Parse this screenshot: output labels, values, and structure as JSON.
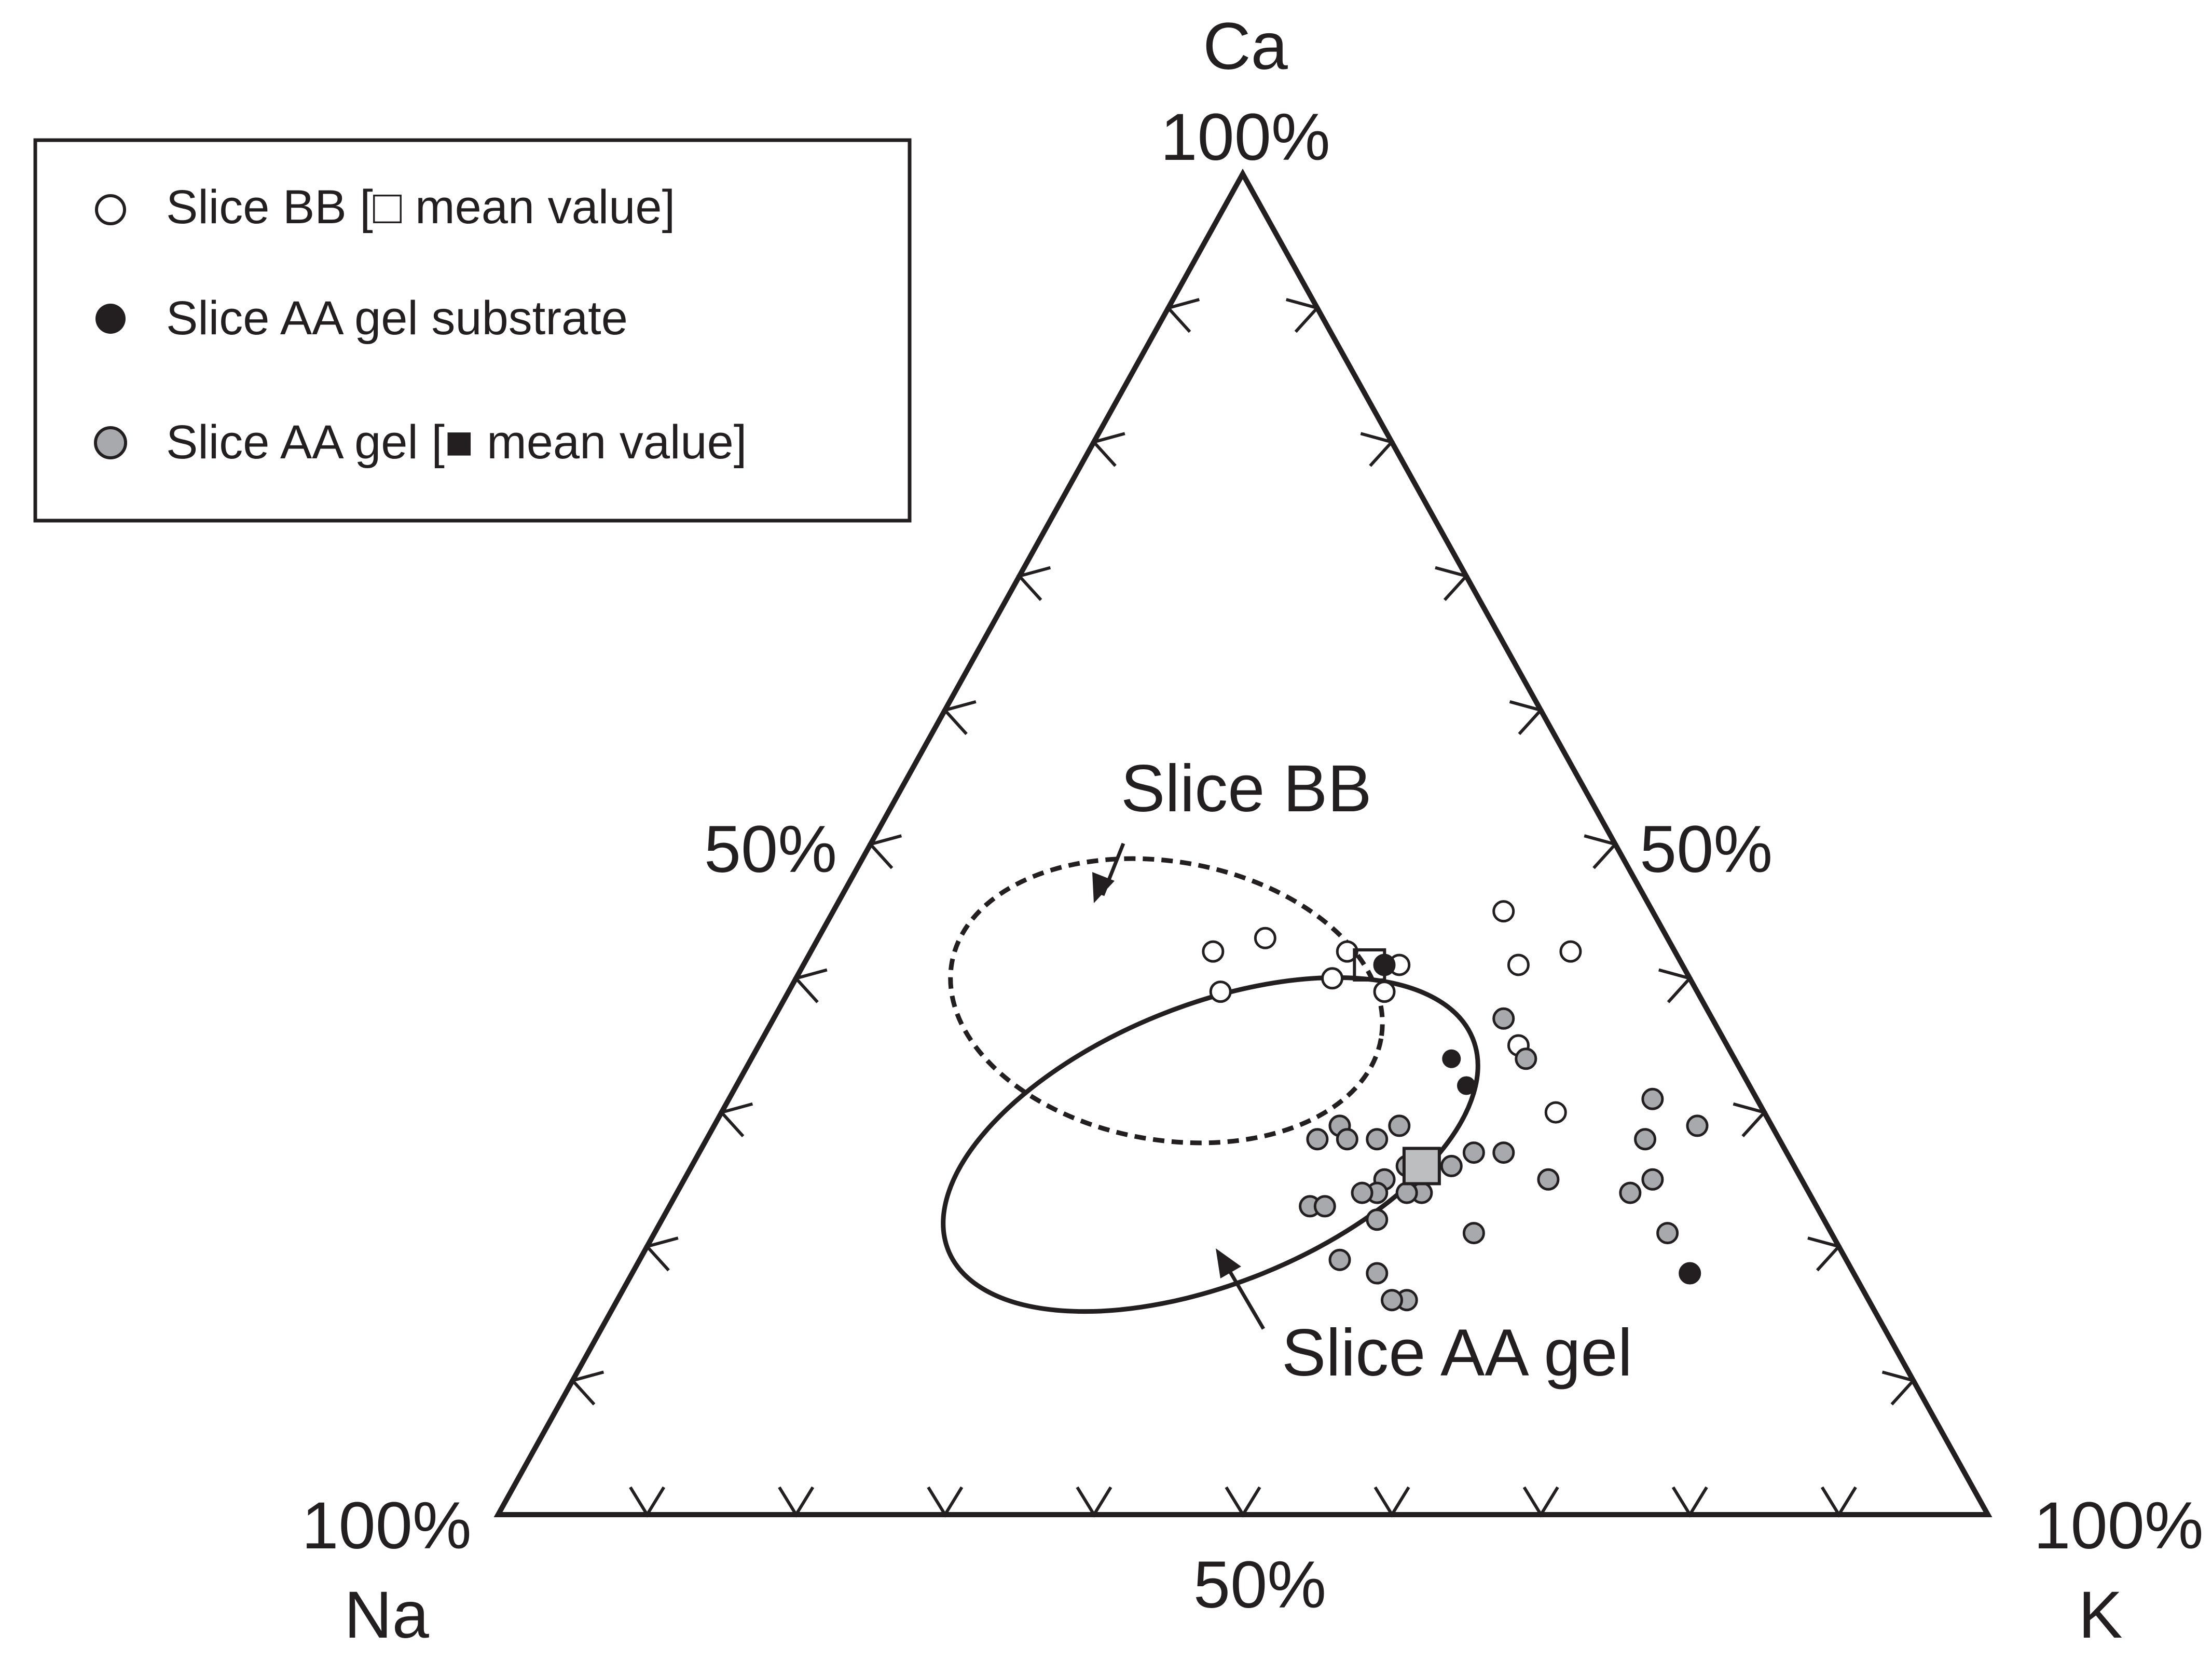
{
  "chart_data": {
    "type": "ternary-scatter",
    "axes": {
      "top": {
        "label": "Ca",
        "apex_label": "100%",
        "mid_label": "50%"
      },
      "left": {
        "label": "Na",
        "apex_label": "100%"
      },
      "right": {
        "label": "K",
        "apex_label": "100%",
        "mid_label": "50%"
      },
      "bottom_mid_label": "50%",
      "tick_step_percent": 10
    },
    "legend": {
      "placement": "top-left",
      "entries": [
        {
          "id": "bb",
          "text": "Slice BB [□ mean value]",
          "marker": "open-circle"
        },
        {
          "id": "substrate",
          "text": "Slice AA gel substrate",
          "marker": "filled-circle"
        },
        {
          "id": "gel",
          "text": "Slice AA gel [■ mean value]",
          "marker": "grey-circle"
        }
      ]
    },
    "annotations": [
      {
        "text": "Slice BB",
        "series": "bb"
      },
      {
        "text": "Slice AA gel",
        "series": "gel"
      }
    ],
    "colors": {
      "ink": "#231f20",
      "gel_fill": "#a7a9ac",
      "gel_mean_fill": "#bcbec0",
      "open_fill": "#ffffff"
    },
    "series": [
      {
        "id": "bb",
        "points": [
          {
            "na": 27,
            "k": 30,
            "ca": 43
          },
          {
            "na": 32,
            "k": 29,
            "ca": 39
          },
          {
            "na": 31,
            "k": 27,
            "ca": 42
          },
          {
            "na": 22,
            "k": 36,
            "ca": 42
          },
          {
            "na": 24,
            "k": 36,
            "ca": 40
          },
          {
            "na": 21,
            "k": 40,
            "ca": 39
          },
          {
            "na": 19,
            "k": 40,
            "ca": 41
          },
          {
            "na": 20,
            "k": 39,
            "ca": 41
          },
          {
            "na": 10,
            "k": 45,
            "ca": 45
          },
          {
            "na": 11,
            "k": 48,
            "ca": 41
          },
          {
            "na": 14,
            "k": 51,
            "ca": 35
          },
          {
            "na": 14,
            "k": 56,
            "ca": 30
          },
          {
            "na": 7,
            "k": 51,
            "ca": 42
          }
        ],
        "mean": {
          "na": 21,
          "k": 38,
          "ca": 41
        }
      },
      {
        "id": "substrate",
        "points": [
          {
            "na": 20,
            "k": 39,
            "ca": 41
          },
          {
            "na": 19,
            "k": 47,
            "ca": 34
          },
          {
            "na": 19,
            "k": 49,
            "ca": 32
          },
          {
            "na": 11,
            "k": 71,
            "ca": 18
          }
        ]
      },
      {
        "id": "gel",
        "points": [
          {
            "na": 14,
            "k": 49,
            "ca": 37
          },
          {
            "na": 14,
            "k": 52,
            "ca": 34
          },
          {
            "na": 7,
            "k": 62,
            "ca": 31
          },
          {
            "na": 9,
            "k": 63,
            "ca": 28
          },
          {
            "na": 10,
            "k": 65,
            "ca": 25
          },
          {
            "na": 5,
            "k": 66,
            "ca": 29
          },
          {
            "na": 12,
            "k": 64,
            "ca": 24
          },
          {
            "na": 11,
            "k": 68,
            "ca": 21
          },
          {
            "na": 11,
            "k": 71,
            "ca": 18
          },
          {
            "na": 19,
            "k": 54,
            "ca": 27
          },
          {
            "na": 21,
            "k": 52,
            "ca": 27
          },
          {
            "na": 23,
            "k": 51,
            "ca": 26
          },
          {
            "na": 26,
            "k": 48,
            "ca": 26
          },
          {
            "na": 25,
            "k": 46,
            "ca": 29
          },
          {
            "na": 27,
            "k": 45,
            "ca": 28
          },
          {
            "na": 29,
            "k": 42,
            "ca": 29
          },
          {
            "na": 31,
            "k": 41,
            "ca": 28
          },
          {
            "na": 29,
            "k": 43,
            "ca": 28
          },
          {
            "na": 34,
            "k": 43,
            "ca": 23
          },
          {
            "na": 33,
            "k": 44,
            "ca": 23
          },
          {
            "na": 28,
            "k": 47,
            "ca": 25
          },
          {
            "na": 29,
            "k": 47,
            "ca": 24
          },
          {
            "na": 26,
            "k": 50,
            "ca": 24
          },
          {
            "na": 30,
            "k": 48,
            "ca": 22
          },
          {
            "na": 24,
            "k": 55,
            "ca": 21
          },
          {
            "na": 17,
            "k": 58,
            "ca": 25
          },
          {
            "na": 27,
            "k": 49,
            "ca": 24
          },
          {
            "na": 30,
            "k": 46,
            "ca": 24
          },
          {
            "na": 32,
            "k": 50,
            "ca": 18
          },
          {
            "na": 31,
            "k": 53,
            "ca": 16
          },
          {
            "na": 32,
            "k": 52,
            "ca": 16
          },
          {
            "na": 34,
            "k": 47,
            "ca": 19
          }
        ],
        "mean": {
          "na": 25,
          "k": 49,
          "ca": 26
        }
      }
    ]
  }
}
